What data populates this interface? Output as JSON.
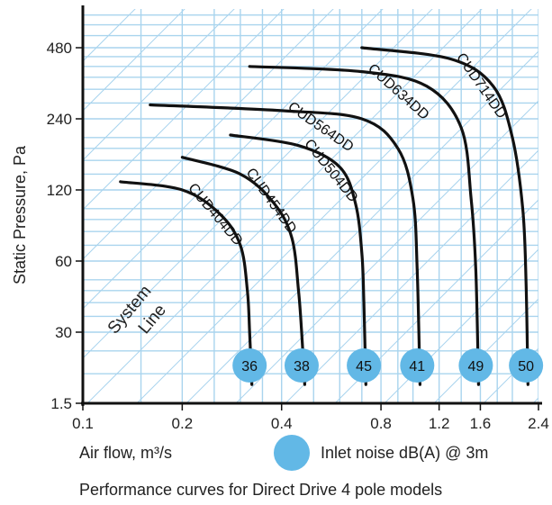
{
  "chart_data": {
    "type": "line",
    "title": "",
    "caption": "Performance curves for Direct Drive 4 pole models",
    "xlabel": "Air flow, m³/s",
    "ylabel": "Static Pressure, Pa",
    "x_scale": "log",
    "y_scale": "log",
    "x_ticks": [
      "0.1",
      "0.2",
      "0.4",
      "0.8",
      "1.2",
      "1.6",
      "2.4"
    ],
    "y_ticks": [
      "1.5",
      "30",
      "60",
      "120",
      "240",
      "480"
    ],
    "grid": true,
    "system_line_label": [
      "System",
      "Line"
    ],
    "legend_text": "Inlet noise dB(A) @ 3m",
    "bubble_color": "#62b8e6",
    "grid_color": "#a9d4ee",
    "series": [
      {
        "name": "CUD404DD",
        "noise": "36",
        "points": [
          [
            0.13,
            130
          ],
          [
            0.2,
            120
          ],
          [
            0.26,
            95
          ],
          [
            0.3,
            70
          ],
          [
            0.315,
            45
          ],
          [
            0.32,
            30
          ],
          [
            0.325,
            18
          ]
        ]
      },
      {
        "name": "CUD454DD",
        "noise": "38",
        "points": [
          [
            0.2,
            165
          ],
          [
            0.3,
            140
          ],
          [
            0.38,
            105
          ],
          [
            0.43,
            75
          ],
          [
            0.45,
            45
          ],
          [
            0.46,
            30
          ],
          [
            0.47,
            18
          ]
        ]
      },
      {
        "name": "CUD504DD",
        "noise": "45",
        "points": [
          [
            0.28,
            205
          ],
          [
            0.45,
            185
          ],
          [
            0.6,
            150
          ],
          [
            0.67,
            105
          ],
          [
            0.7,
            65
          ],
          [
            0.71,
            40
          ],
          [
            0.72,
            18
          ]
        ]
      },
      {
        "name": "CUD564DD",
        "noise": "41",
        "points": [
          [
            0.16,
            275
          ],
          [
            0.4,
            260
          ],
          [
            0.7,
            240
          ],
          [
            0.9,
            180
          ],
          [
            1.0,
            110
          ],
          [
            1.03,
            55
          ],
          [
            1.05,
            18
          ]
        ]
      },
      {
        "name": "CUD634DD",
        "noise": "49",
        "points": [
          [
            0.32,
            400
          ],
          [
            0.7,
            380
          ],
          [
            1.1,
            330
          ],
          [
            1.4,
            220
          ],
          [
            1.5,
            110
          ],
          [
            1.55,
            55
          ],
          [
            1.58,
            18
          ]
        ]
      },
      {
        "name": "CUD714DD",
        "noise": "50",
        "points": [
          [
            0.7,
            480
          ],
          [
            1.3,
            430
          ],
          [
            1.75,
            330
          ],
          [
            2.0,
            200
          ],
          [
            2.15,
            100
          ],
          [
            2.2,
            50
          ],
          [
            2.23,
            18
          ]
        ]
      }
    ]
  }
}
